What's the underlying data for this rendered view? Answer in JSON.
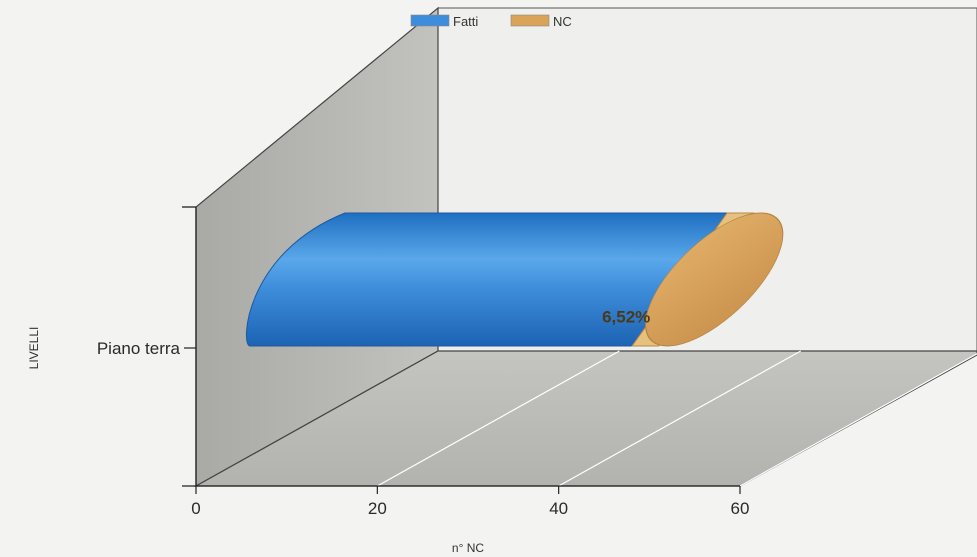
{
  "chart_data": {
    "type": "bar",
    "orientation": "horizontal",
    "stacked": true,
    "categories": [
      "Piano terra"
    ],
    "series": [
      {
        "name": "Fatti",
        "values": [
          43
        ],
        "color": "#3d8ddc"
      },
      {
        "name": "NC",
        "values": [
          3
        ],
        "color": "#d9a458",
        "label": "6,52%"
      }
    ],
    "xlabel": "n° NC",
    "ylabel": "LIVELLI",
    "xlim": [
      0,
      60
    ],
    "xticks": [
      0,
      20,
      40,
      60
    ],
    "legend_position": "top",
    "grid": true
  }
}
